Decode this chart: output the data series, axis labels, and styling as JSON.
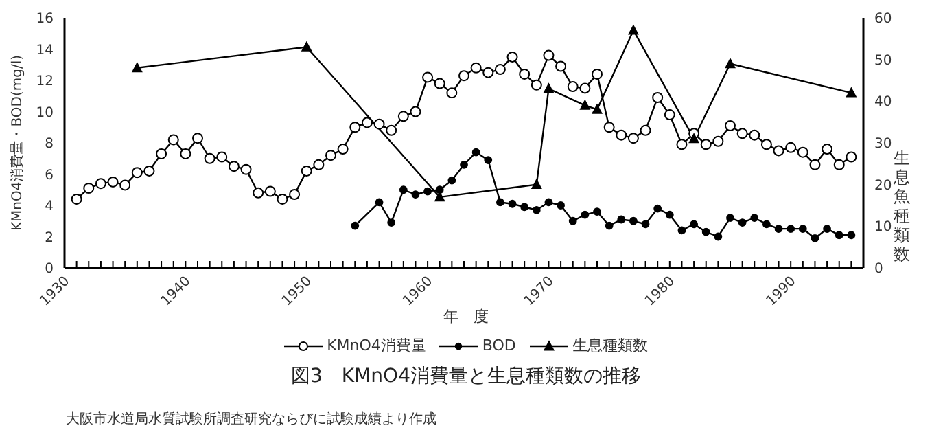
{
  "chart_data": {
    "type": "line",
    "title": "図3　KMnO4消費量と生息種類数の推移",
    "xlabel": "年　度",
    "ylabel": "KMnO4消費量・BOD(mg/l)",
    "y2label": "生息魚種類数",
    "annotations": [
      "大阪市水道局水質試験所調査研究ならびに試験成績より作成"
    ],
    "series": [
      {
        "name": "KMnO4消費量",
        "color": "#000000",
        "marker": "circle",
        "x": [
          1931,
          1932,
          1933,
          1934,
          1935,
          1936,
          1937,
          1938,
          1939,
          1940,
          1941,
          1942,
          1943,
          1944,
          1945,
          1946,
          1947,
          1948,
          1949,
          1950,
          1951,
          1952,
          1953,
          1954,
          1955,
          1956,
          1957,
          1958,
          1959,
          1960,
          1961,
          1962,
          1963,
          1964,
          1965,
          1966,
          1967,
          1968,
          1969,
          1970,
          1971,
          1972,
          1973,
          1974,
          1975,
          1976,
          1977,
          1978,
          1979,
          1980,
          1981,
          1982,
          1983,
          1984,
          1985,
          1986,
          1987,
          1988,
          1989,
          1990,
          1991,
          1992,
          1993,
          1994,
          1995
        ],
        "values": [
          4.4,
          5.1,
          5.4,
          5.5,
          5.3,
          6.1,
          6.2,
          7.3,
          8.2,
          7.3,
          8.3,
          7.0,
          7.1,
          6.5,
          6.3,
          4.8,
          4.9,
          4.4,
          4.7,
          6.2,
          6.6,
          7.2,
          7.6,
          9.0,
          9.3,
          9.2,
          8.8,
          9.7,
          10.0,
          12.2,
          11.8,
          11.2,
          12.3,
          12.8,
          12.5,
          12.7,
          13.5,
          12.4,
          11.7,
          13.6,
          12.9,
          11.6,
          11.5,
          12.4,
          9.0,
          8.5,
          8.3,
          8.8,
          10.9,
          9.8,
          7.9,
          8.6,
          7.9,
          8.1,
          9.1,
          8.6,
          8.5,
          7.9,
          7.5,
          7.7,
          7.4,
          6.6,
          7.6,
          6.6,
          7.1
        ]
      },
      {
        "name": "BOD",
        "color": "#000000",
        "marker": "circle",
        "x": [
          1954,
          1956,
          1957,
          1958,
          1959,
          1960,
          1961,
          1962,
          1963,
          1964,
          1965,
          1966,
          1967,
          1968,
          1969,
          1970,
          1971,
          1972,
          1973,
          1974,
          1975,
          1976,
          1977,
          1978,
          1979,
          1980,
          1981,
          1982,
          1983,
          1984,
          1985,
          1986,
          1987,
          1988,
          1989,
          1990,
          1991,
          1992,
          1993,
          1994,
          1995
        ],
        "values": [
          2.7,
          4.2,
          2.9,
          5.0,
          4.7,
          4.9,
          5.0,
          5.6,
          6.6,
          7.4,
          6.9,
          4.2,
          4.1,
          3.9,
          3.7,
          4.2,
          4.0,
          3.0,
          3.4,
          3.6,
          2.7,
          3.1,
          3.0,
          2.8,
          3.8,
          3.4,
          2.4,
          2.8,
          2.3,
          2.0,
          3.2,
          2.9,
          3.2,
          2.8,
          2.5,
          2.5,
          2.5,
          1.9,
          2.5,
          2.1,
          2.1
        ]
      },
      {
        "name": "生息種類数",
        "color": "#000000",
        "marker": "triangle",
        "axis": "y2",
        "x": [
          1936,
          1950,
          1961,
          1969,
          1970,
          1973,
          1974,
          1977,
          1982,
          1985,
          1995
        ],
        "values": [
          48,
          53,
          17,
          20,
          43,
          39,
          38,
          57,
          31,
          49,
          42
        ]
      }
    ],
    "xlim": [
      1930,
      1996
    ],
    "xticks": [
      1930,
      {
        "value": 1931,
        "label": null
      },
      {
        "value": 1932,
        "label": null
      },
      {
        "value": 1933,
        "label": null
      },
      {
        "value": 1934,
        "label": null
      },
      {
        "value": 1935,
        "label": null
      },
      {
        "value": 1936,
        "label": null
      },
      {
        "value": 1937,
        "label": null
      },
      {
        "value": 1938,
        "label": null
      },
      {
        "value": 1939,
        "label": null
      },
      1940,
      {
        "value": 1941,
        "label": null
      },
      {
        "value": 1942,
        "label": null
      },
      {
        "value": 1943,
        "label": null
      },
      {
        "value": 1944,
        "label": null
      },
      {
        "value": 1945,
        "label": null
      },
      {
        "value": 1946,
        "label": null
      },
      {
        "value": 1947,
        "label": null
      },
      {
        "value": 1948,
        "label": null
      },
      {
        "value": 1949,
        "label": null
      },
      1950,
      {
        "value": 1951,
        "label": null
      },
      {
        "value": 1952,
        "label": null
      },
      {
        "value": 1953,
        "label": null
      },
      {
        "value": 1954,
        "label": null
      },
      {
        "value": 1955,
        "label": null
      },
      {
        "value": 1956,
        "label": null
      },
      {
        "value": 1957,
        "label": null
      },
      {
        "value": 1958,
        "label": null
      },
      {
        "value": 1959,
        "label": null
      },
      1960,
      {
        "value": 1961,
        "label": null
      },
      {
        "value": 1962,
        "label": null
      },
      {
        "value": 1963,
        "label": null
      },
      {
        "value": 1964,
        "label": null
      },
      {
        "value": 1965,
        "label": null
      },
      {
        "value": 1966,
        "label": null
      },
      {
        "value": 1967,
        "label": null
      },
      {
        "value": 1968,
        "label": null
      },
      {
        "value": 1969,
        "label": null
      },
      1970,
      {
        "value": 1971,
        "label": null
      },
      {
        "value": 1972,
        "label": null
      },
      {
        "value": 1973,
        "label": null
      },
      {
        "value": 1974,
        "label": null
      },
      {
        "value": 1975,
        "label": null
      },
      {
        "value": 1976,
        "label": null
      },
      {
        "value": 1977,
        "label": null
      },
      {
        "value": 1978,
        "label": null
      },
      {
        "value": 1979,
        "label": null
      },
      1980,
      {
        "value": 1981,
        "label": null
      },
      {
        "value": 1982,
        "label": null
      },
      {
        "value": 1983,
        "label": null
      },
      {
        "value": 1984,
        "label": null
      },
      {
        "value": 1985,
        "label": null
      },
      {
        "value": 1986,
        "label": null
      },
      {
        "value": 1987,
        "label": null
      },
      {
        "value": 1988,
        "label": null
      },
      {
        "value": 1989,
        "label": null
      },
      1990,
      {
        "value": 1991,
        "label": null
      },
      {
        "value": 1992,
        "label": null
      },
      {
        "value": 1993,
        "label": null
      },
      {
        "value": 1994,
        "label": null
      },
      {
        "value": 1995,
        "label": null
      }
    ],
    "ylim": [
      0,
      16
    ],
    "yticks": [
      0,
      2,
      4,
      6,
      8,
      10,
      12,
      14,
      16
    ],
    "y2lim": [
      0,
      60
    ],
    "y2ticks": [
      0,
      10,
      20,
      30,
      40,
      50,
      60
    ],
    "grid": false,
    "legend": "bottom",
    "line_style": "solid"
  }
}
